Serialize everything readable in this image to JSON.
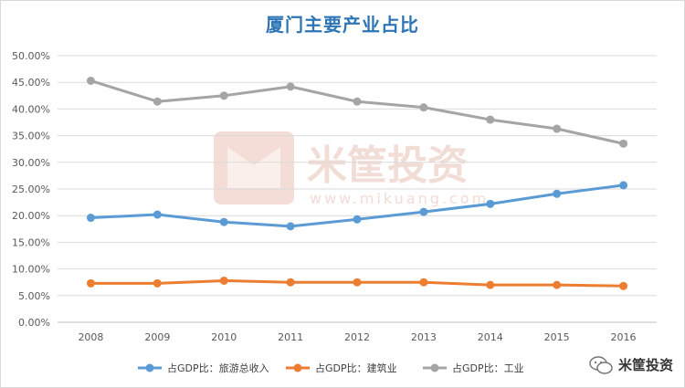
{
  "chart_data": {
    "type": "line",
    "title": "厦门主要产业占比",
    "categories": [
      "2008",
      "2009",
      "2010",
      "2011",
      "2012",
      "2013",
      "2014",
      "2015",
      "2016"
    ],
    "ylim": [
      0,
      50
    ],
    "yticks": [
      "0.00%",
      "5.00%",
      "10.00%",
      "15.00%",
      "20.00%",
      "25.00%",
      "30.00%",
      "35.00%",
      "40.00%",
      "45.00%",
      "50.00%"
    ],
    "grid": true,
    "legend_position": "bottom",
    "series": [
      {
        "name": "占GDP比：旅游总收入",
        "color": "#5b9bd5",
        "values": [
          19.6,
          20.2,
          18.8,
          18.0,
          19.3,
          20.7,
          22.2,
          24.1,
          25.7
        ]
      },
      {
        "name": "占GDP比：建筑业",
        "color": "#ed7d31",
        "values": [
          7.3,
          7.3,
          7.8,
          7.5,
          7.5,
          7.5,
          7.0,
          7.0,
          6.8
        ]
      },
      {
        "name": "占GDP比：工业",
        "color": "#a5a5a5",
        "values": [
          45.3,
          41.4,
          42.5,
          44.2,
          41.4,
          40.3,
          38.0,
          36.3,
          33.5
        ]
      }
    ]
  },
  "watermark": {
    "text": "米筐投资",
    "url": "www.mikuang.com"
  },
  "brand": {
    "label": "米筐投资",
    "icon": "wechat-icon"
  }
}
